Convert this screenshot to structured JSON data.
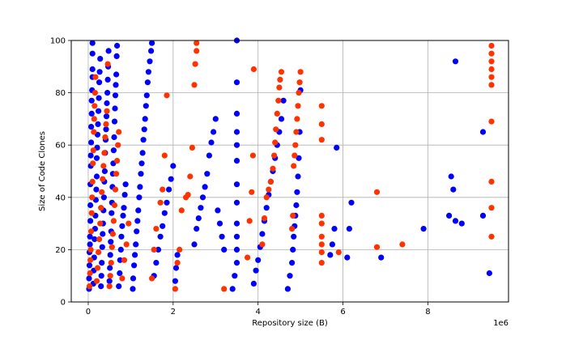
{
  "chart_data": {
    "type": "scatter",
    "title": "",
    "xlabel": "Repository size (B)",
    "ylabel": "Size of Code Clones",
    "x_offset_label": "1e6",
    "xlim": [
      -0.4,
      9.9
    ],
    "ylim": [
      0,
      100
    ],
    "x_ticks": [
      0,
      2,
      4,
      6,
      8
    ],
    "y_ticks": [
      0,
      20,
      40,
      60,
      80,
      100
    ],
    "grid": true,
    "series": [
      {
        "color": "#0000ff",
        "points": [
          [
            0.02,
            5
          ],
          [
            0.02,
            9
          ],
          [
            0.03,
            14
          ],
          [
            0.03,
            19
          ],
          [
            0.04,
            22
          ],
          [
            0.04,
            25
          ],
          [
            0.05,
            31
          ],
          [
            0.05,
            37
          ],
          [
            0.05,
            45
          ],
          [
            0.06,
            52
          ],
          [
            0.06,
            56
          ],
          [
            0.07,
            61
          ],
          [
            0.07,
            67
          ],
          [
            0.08,
            72
          ],
          [
            0.08,
            77
          ],
          [
            0.09,
            81
          ],
          [
            0.1,
            86
          ],
          [
            0.1,
            89
          ],
          [
            0.1,
            95
          ],
          [
            0.1,
            99
          ],
          [
            0.12,
            7
          ],
          [
            0.13,
            12
          ],
          [
            0.14,
            17
          ],
          [
            0.15,
            24
          ],
          [
            0.16,
            28
          ],
          [
            0.17,
            33
          ],
          [
            0.18,
            39
          ],
          [
            0.19,
            43
          ],
          [
            0.2,
            48
          ],
          [
            0.2,
            55
          ],
          [
            0.21,
            59
          ],
          [
            0.22,
            64
          ],
          [
            0.23,
            68
          ],
          [
            0.24,
            73
          ],
          [
            0.25,
            78
          ],
          [
            0.26,
            84
          ],
          [
            0.27,
            88
          ],
          [
            0.28,
            93
          ],
          [
            0.3,
            6
          ],
          [
            0.31,
            10
          ],
          [
            0.32,
            15
          ],
          [
            0.33,
            21
          ],
          [
            0.34,
            26
          ],
          [
            0.35,
            30
          ],
          [
            0.36,
            35
          ],
          [
            0.37,
            40
          ],
          [
            0.38,
            46
          ],
          [
            0.39,
            50
          ],
          [
            0.4,
            57
          ],
          [
            0.41,
            62
          ],
          [
            0.42,
            66
          ],
          [
            0.43,
            71
          ],
          [
            0.44,
            76
          ],
          [
            0.45,
            80
          ],
          [
            0.46,
            85
          ],
          [
            0.47,
            90
          ],
          [
            0.48,
            96
          ],
          [
            0.5,
            8
          ],
          [
            0.51,
            13
          ],
          [
            0.52,
            18
          ],
          [
            0.53,
            23
          ],
          [
            0.54,
            27
          ],
          [
            0.55,
            34
          ],
          [
            0.56,
            38
          ],
          [
            0.57,
            44
          ],
          [
            0.58,
            49
          ],
          [
            0.59,
            53
          ],
          [
            0.6,
            58
          ],
          [
            0.61,
            63
          ],
          [
            0.62,
            69
          ],
          [
            0.63,
            74
          ],
          [
            0.64,
            79
          ],
          [
            0.65,
            83
          ],
          [
            0.66,
            87
          ],
          [
            0.67,
            94
          ],
          [
            0.68,
            98
          ],
          [
            0.72,
            6
          ],
          [
            0.74,
            11
          ],
          [
            0.75,
            16
          ],
          [
            0.77,
            20
          ],
          [
            0.78,
            25
          ],
          [
            0.8,
            29
          ],
          [
            0.82,
            33
          ],
          [
            0.84,
            36
          ],
          [
            0.86,
            41
          ],
          [
            0.88,
            45
          ],
          [
            1.05,
            5
          ],
          [
            1.06,
            9
          ],
          [
            1.08,
            14
          ],
          [
            1.1,
            18
          ],
          [
            1.12,
            22
          ],
          [
            1.14,
            27
          ],
          [
            1.16,
            31
          ],
          [
            1.18,
            35
          ],
          [
            1.2,
            40
          ],
          [
            1.22,
            44
          ],
          [
            1.24,
            49
          ],
          [
            1.26,
            53
          ],
          [
            1.28,
            57
          ],
          [
            1.3,
            62
          ],
          [
            1.32,
            66
          ],
          [
            1.34,
            70
          ],
          [
            1.36,
            75
          ],
          [
            1.38,
            79
          ],
          [
            1.4,
            84
          ],
          [
            1.42,
            88
          ],
          [
            1.45,
            92
          ],
          [
            1.48,
            96
          ],
          [
            1.5,
            99
          ],
          [
            1.55,
            10
          ],
          [
            1.6,
            15
          ],
          [
            1.65,
            20
          ],
          [
            1.7,
            25
          ],
          [
            1.75,
            29
          ],
          [
            1.8,
            34
          ],
          [
            1.85,
            38
          ],
          [
            1.9,
            43
          ],
          [
            1.95,
            47
          ],
          [
            2.0,
            52
          ],
          [
            2.05,
            8
          ],
          [
            2.07,
            13
          ],
          [
            2.1,
            18
          ],
          [
            2.5,
            22
          ],
          [
            2.55,
            28
          ],
          [
            2.6,
            32
          ],
          [
            2.65,
            36
          ],
          [
            2.7,
            40
          ],
          [
            2.75,
            44
          ],
          [
            2.8,
            49
          ],
          [
            2.85,
            56
          ],
          [
            2.9,
            61
          ],
          [
            2.95,
            65
          ],
          [
            3.0,
            70
          ],
          [
            3.05,
            35
          ],
          [
            3.1,
            30
          ],
          [
            3.15,
            25
          ],
          [
            3.2,
            20
          ],
          [
            3.4,
            5
          ],
          [
            3.45,
            10
          ],
          [
            3.5,
            15
          ],
          [
            3.5,
            20
          ],
          [
            3.5,
            25
          ],
          [
            3.5,
            30
          ],
          [
            3.5,
            38
          ],
          [
            3.5,
            45
          ],
          [
            3.5,
            54
          ],
          [
            3.5,
            60
          ],
          [
            3.5,
            65
          ],
          [
            3.5,
            72
          ],
          [
            3.5,
            84
          ],
          [
            3.5,
            100
          ],
          [
            3.9,
            7
          ],
          [
            3.95,
            12
          ],
          [
            4.0,
            16
          ],
          [
            4.05,
            21
          ],
          [
            4.1,
            26
          ],
          [
            4.15,
            31
          ],
          [
            4.2,
            36
          ],
          [
            4.25,
            41
          ],
          [
            4.3,
            46
          ],
          [
            4.35,
            50
          ],
          [
            4.4,
            55
          ],
          [
            4.45,
            60
          ],
          [
            4.5,
            65
          ],
          [
            4.55,
            70
          ],
          [
            4.6,
            77
          ],
          [
            4.7,
            5
          ],
          [
            4.75,
            10
          ],
          [
            4.8,
            15
          ],
          [
            4.82,
            20
          ],
          [
            4.84,
            25
          ],
          [
            4.86,
            29
          ],
          [
            4.88,
            33
          ],
          [
            4.9,
            37
          ],
          [
            4.92,
            42
          ],
          [
            4.94,
            48
          ],
          [
            4.96,
            55
          ],
          [
            4.98,
            65
          ],
          [
            5.0,
            81
          ],
          [
            5.7,
            18
          ],
          [
            5.75,
            22
          ],
          [
            5.8,
            28
          ],
          [
            5.85,
            59
          ],
          [
            6.1,
            17
          ],
          [
            6.15,
            28
          ],
          [
            6.2,
            38
          ],
          [
            6.9,
            17
          ],
          [
            7.9,
            28
          ],
          [
            8.5,
            33
          ],
          [
            8.55,
            48
          ],
          [
            8.6,
            43
          ],
          [
            8.65,
            31
          ],
          [
            8.65,
            92
          ],
          [
            8.8,
            30
          ],
          [
            9.3,
            33
          ],
          [
            9.3,
            65
          ],
          [
            9.45,
            11
          ]
        ]
      },
      {
        "color": "#ff3300",
        "points": [
          [
            0.03,
            6
          ],
          [
            0.04,
            11
          ],
          [
            0.05,
            16
          ],
          [
            0.06,
            20
          ],
          [
            0.07,
            27
          ],
          [
            0.08,
            34
          ],
          [
            0.09,
            40
          ],
          [
            0.1,
            46
          ],
          [
            0.11,
            53
          ],
          [
            0.12,
            58
          ],
          [
            0.13,
            65
          ],
          [
            0.14,
            70
          ],
          [
            0.15,
            75
          ],
          [
            0.16,
            80
          ],
          [
            0.17,
            86
          ],
          [
            0.2,
            8
          ],
          [
            0.22,
            13
          ],
          [
            0.24,
            19
          ],
          [
            0.26,
            24
          ],
          [
            0.28,
            30
          ],
          [
            0.3,
            36
          ],
          [
            0.32,
            42
          ],
          [
            0.34,
            47
          ],
          [
            0.36,
            52
          ],
          [
            0.38,
            57
          ],
          [
            0.4,
            63
          ],
          [
            0.42,
            68
          ],
          [
            0.44,
            73
          ],
          [
            0.46,
            91
          ],
          [
            0.5,
            6
          ],
          [
            0.52,
            10
          ],
          [
            0.54,
            15
          ],
          [
            0.56,
            21
          ],
          [
            0.58,
            26
          ],
          [
            0.6,
            31
          ],
          [
            0.62,
            37
          ],
          [
            0.64,
            43
          ],
          [
            0.66,
            49
          ],
          [
            0.68,
            54
          ],
          [
            0.7,
            60
          ],
          [
            0.72,
            65
          ],
          [
            0.8,
            9
          ],
          [
            0.85,
            16
          ],
          [
            0.9,
            22
          ],
          [
            0.95,
            30
          ],
          [
            1.5,
            9
          ],
          [
            1.55,
            20
          ],
          [
            1.6,
            28
          ],
          [
            1.7,
            38
          ],
          [
            1.75,
            43
          ],
          [
            1.8,
            56
          ],
          [
            1.85,
            79
          ],
          [
            2.05,
            5
          ],
          [
            2.1,
            15
          ],
          [
            2.15,
            20
          ],
          [
            2.2,
            35
          ],
          [
            2.3,
            40
          ],
          [
            2.35,
            41
          ],
          [
            2.4,
            48
          ],
          [
            2.45,
            59
          ],
          [
            2.5,
            83
          ],
          [
            2.52,
            91
          ],
          [
            2.55,
            96
          ],
          [
            2.55,
            99
          ],
          [
            3.2,
            5
          ],
          [
            3.75,
            17
          ],
          [
            3.8,
            31
          ],
          [
            3.85,
            42
          ],
          [
            3.88,
            56
          ],
          [
            3.9,
            89
          ],
          [
            4.1,
            22
          ],
          [
            4.15,
            32
          ],
          [
            4.2,
            40
          ],
          [
            4.25,
            43
          ],
          [
            4.3,
            46
          ],
          [
            4.35,
            51
          ],
          [
            4.38,
            56
          ],
          [
            4.4,
            61
          ],
          [
            4.42,
            66
          ],
          [
            4.45,
            72
          ],
          [
            4.48,
            77
          ],
          [
            4.5,
            82
          ],
          [
            4.52,
            85
          ],
          [
            4.55,
            88
          ],
          [
            4.8,
            28
          ],
          [
            4.82,
            33
          ],
          [
            4.84,
            52
          ],
          [
            4.86,
            56
          ],
          [
            4.88,
            60
          ],
          [
            4.9,
            65
          ],
          [
            4.92,
            70
          ],
          [
            4.94,
            75
          ],
          [
            4.96,
            80
          ],
          [
            4.98,
            84
          ],
          [
            5.0,
            88
          ],
          [
            5.5,
            15
          ],
          [
            5.5,
            19
          ],
          [
            5.5,
            22
          ],
          [
            5.5,
            25
          ],
          [
            5.5,
            30
          ],
          [
            5.5,
            33
          ],
          [
            5.5,
            62
          ],
          [
            5.5,
            68
          ],
          [
            5.5,
            75
          ],
          [
            5.9,
            19
          ],
          [
            6.8,
            21
          ],
          [
            6.8,
            42
          ],
          [
            7.4,
            22
          ],
          [
            9.5,
            25
          ],
          [
            9.5,
            36
          ],
          [
            9.5,
            46
          ],
          [
            9.5,
            69
          ],
          [
            9.5,
            83
          ],
          [
            9.5,
            86
          ],
          [
            9.5,
            89
          ],
          [
            9.5,
            92
          ],
          [
            9.5,
            95
          ],
          [
            9.5,
            98
          ]
        ]
      }
    ]
  }
}
